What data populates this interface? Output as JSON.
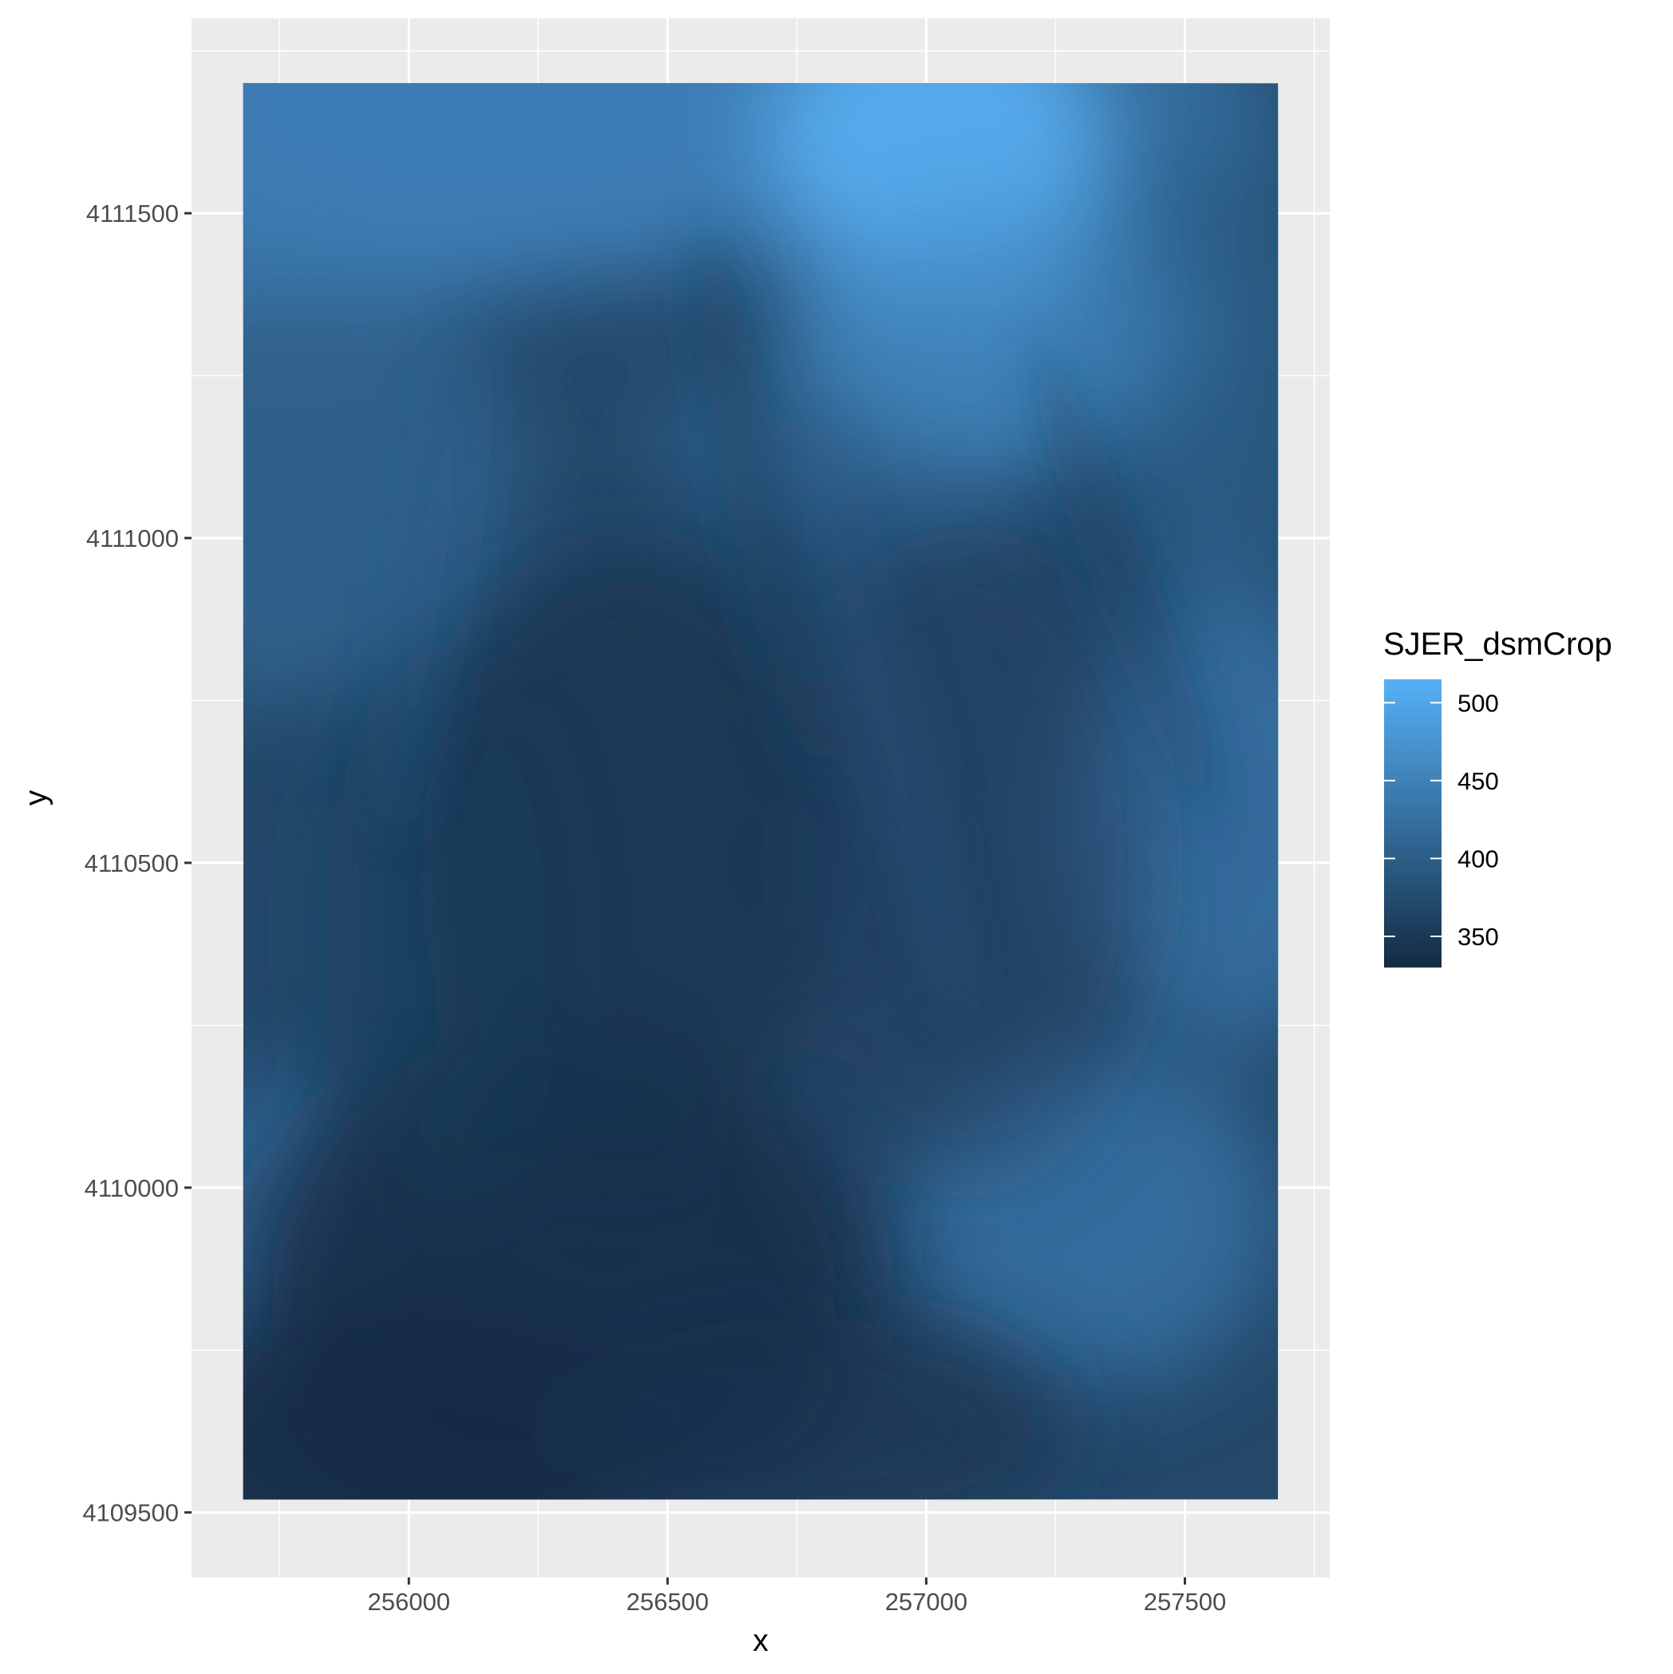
{
  "chart_data": {
    "type": "heatmap",
    "title": "",
    "xlabel": "x",
    "ylabel": "y",
    "x_ticks": [
      256000,
      256500,
      257000,
      257500
    ],
    "y_ticks": [
      4109500,
      4110000,
      4110500,
      4111000,
      4111500
    ],
    "x_tick_labels": [
      "256000",
      "256500",
      "257000",
      "257500"
    ],
    "y_tick_labels": [
      "4109500",
      "4110000",
      "4110500",
      "4111000",
      "4111500"
    ],
    "xlim": [
      255580,
      257780
    ],
    "ylim": [
      4109400,
      4111800
    ],
    "raster_extent": {
      "xmin": 255680,
      "xmax": 257680,
      "ymin": 4109520,
      "ymax": 4111700
    },
    "grid": true,
    "legend": {
      "title": "SJER_dsmCrop",
      "position": "right",
      "ticks": [
        350,
        400,
        450,
        500
      ],
      "tick_labels": [
        "350",
        "400",
        "450",
        "500"
      ],
      "range": [
        330,
        515
      ],
      "low_color": "#132B43",
      "high_color": "#56B1F7"
    },
    "description_of_values": "Continuous elevation surface; higher values (light blue) toward the top-center and upper-right, lowest values (dark navy) in lower-left and center",
    "colors": {
      "panel_background": "#EBEBEB",
      "grid_major": "#FFFFFF",
      "low": "#132B43",
      "high": "#56B1F7"
    }
  }
}
